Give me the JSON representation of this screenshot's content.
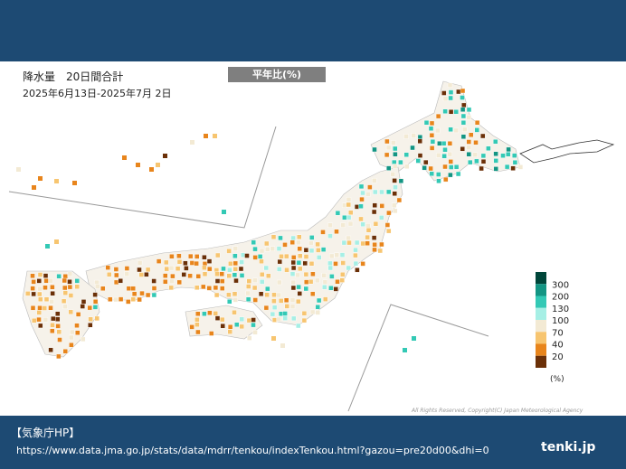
{
  "header": {
    "title": "降水量　20日間合計",
    "period": "2025年6月13日-2025年7月 2日",
    "badge": "平年比(%)"
  },
  "legend": {
    "labels": [
      "300",
      "200",
      "130",
      "100",
      "70",
      "40",
      "20"
    ],
    "colors": [
      "#00463a",
      "#139583",
      "#33c9b5",
      "#a6efe5",
      "#f3ead4",
      "#f7c570",
      "#e8851c",
      "#6b3008"
    ],
    "unit": "(%)"
  },
  "copyright": "All Rights Reserved, Copyright(C) Japan Meteorological Agency",
  "footer": {
    "source": "【気象庁HP】",
    "url": "https://www.data.jma.go.jp/stats/data/mdrr/tenkou/indexTenkou.html?gazou=pre20d00&dhi=0",
    "logo": "tenki.jp"
  }
}
